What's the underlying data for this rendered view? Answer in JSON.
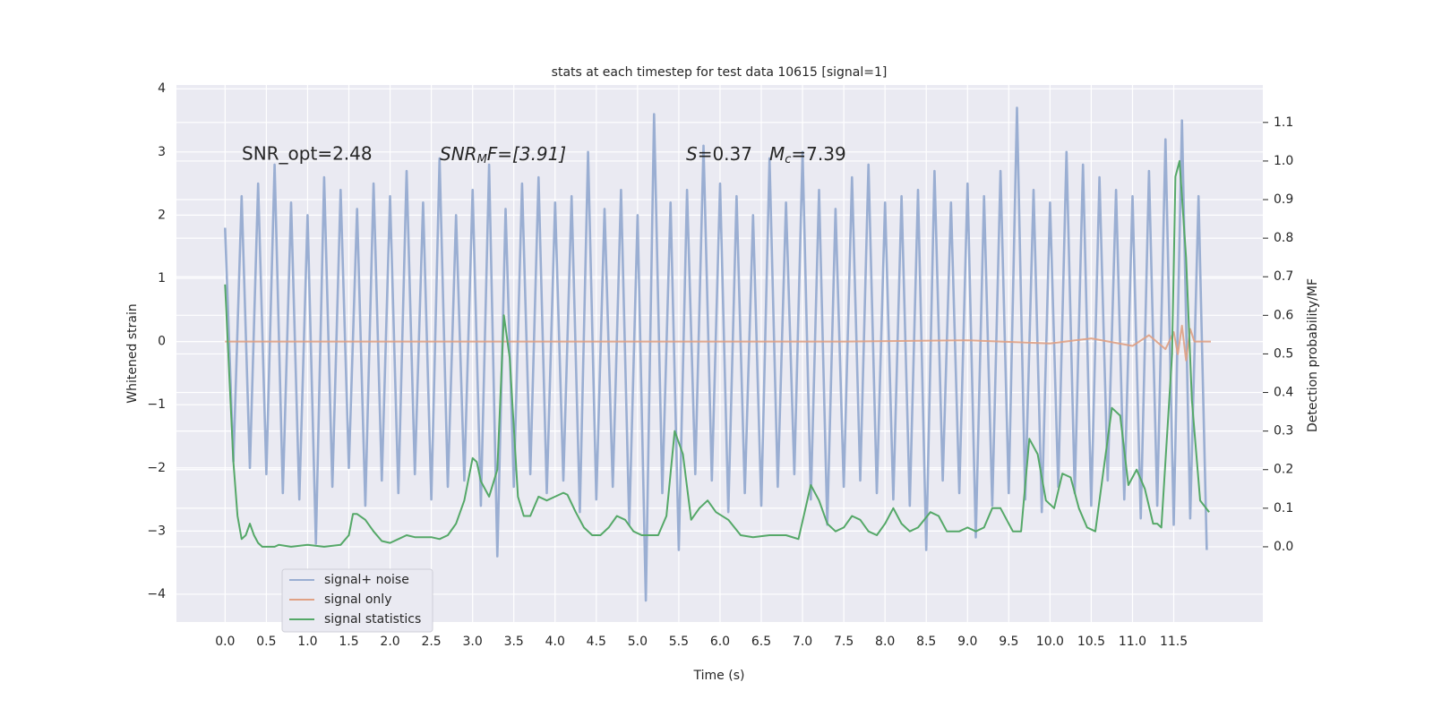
{
  "chart_data": {
    "type": "line",
    "title": "stats at each timestep for test data 10615 [signal=1]",
    "xlabel": "Time (s)",
    "ylabel": "Whitened strain",
    "y2label": "Detection probability/MF",
    "annotations": {
      "snr_opt": "SNR_opt=2.48",
      "snr_mf": {
        "main": "SNR",
        "sub": "M",
        "rest": "F=[3.91]"
      },
      "s": {
        "sym": "S",
        "rest": "=0.37"
      },
      "mc": {
        "sym": "M",
        "sub": "c",
        "rest": "=7.39"
      }
    },
    "xlim": [
      -0.59,
      12.58
    ],
    "ylim": [
      -4.44,
      4.06
    ],
    "y2lim": [
      -0.195,
      1.197
    ],
    "xticks": [
      {
        "value": 0,
        "label": "0.0"
      },
      0.5,
      {
        "value": 1,
        "label": "1.0"
      },
      1.5,
      {
        "value": 2,
        "label": "2.0"
      },
      2.5,
      {
        "value": 3,
        "label": "3.0"
      },
      3.5,
      {
        "value": 4,
        "label": "4.0"
      },
      4.5,
      {
        "value": 5,
        "label": "5.0"
      },
      5.5,
      {
        "value": 6,
        "label": "6.0"
      },
      6.5,
      {
        "value": 7,
        "label": "7.0"
      },
      7.5,
      {
        "value": 8,
        "label": "8.0"
      },
      8.5,
      {
        "value": 9,
        "label": "9.0"
      },
      9.5,
      {
        "value": 10,
        "label": "10.0"
      },
      10.5,
      {
        "value": 11,
        "label": "11.0"
      },
      11.5
    ],
    "yticks": [
      {
        "value": -4,
        "label": "−4"
      },
      {
        "value": -3,
        "label": "−3"
      },
      {
        "value": -2,
        "label": "−2"
      },
      {
        "value": -1,
        "label": "−1"
      },
      0,
      1,
      2,
      3,
      4
    ],
    "y2ticks": [
      {
        "value": 0,
        "label": "0.0"
      },
      0.1,
      0.2,
      0.3,
      0.4,
      0.5,
      0.6,
      0.7,
      0.8,
      0.9,
      {
        "value": 1,
        "label": "1.0"
      },
      1.1
    ],
    "grid": true,
    "legend": "lower left",
    "series": [
      {
        "name": "signal+ noise",
        "color": "#9aaed2",
        "x": [
          0.0,
          0.1,
          0.2,
          0.3,
          0.4,
          0.5,
          0.6,
          0.7,
          0.8,
          0.9,
          1.0,
          1.1,
          1.2,
          1.3,
          1.4,
          1.5,
          1.6,
          1.7,
          1.8,
          1.9,
          2.0,
          2.1,
          2.2,
          2.3,
          2.4,
          2.5,
          2.6,
          2.7,
          2.8,
          2.9,
          3.0,
          3.1,
          3.2,
          3.3,
          3.4,
          3.5,
          3.6,
          3.7,
          3.8,
          3.9,
          4.0,
          4.1,
          4.2,
          4.3,
          4.4,
          4.5,
          4.6,
          4.7,
          4.8,
          4.9,
          5.0,
          5.1,
          5.2,
          5.3,
          5.4,
          5.5,
          5.6,
          5.7,
          5.8,
          5.9,
          6.0,
          6.1,
          6.2,
          6.3,
          6.4,
          6.5,
          6.6,
          6.7,
          6.8,
          6.9,
          7.0,
          7.1,
          7.2,
          7.3,
          7.4,
          7.5,
          7.6,
          7.7,
          7.8,
          7.9,
          8.0,
          8.1,
          8.2,
          8.3,
          8.4,
          8.5,
          8.6,
          8.7,
          8.8,
          8.9,
          9.0,
          9.1,
          9.2,
          9.3,
          9.4,
          9.5,
          9.6,
          9.7,
          9.8,
          9.9,
          10.0,
          10.1,
          10.2,
          10.3,
          10.4,
          10.5,
          10.6,
          10.7,
          10.8,
          10.9,
          11.0,
          11.1,
          11.2,
          11.3,
          11.4,
          11.5,
          11.6,
          11.7,
          11.8,
          11.9
        ],
        "values": [
          1.8,
          -1.9,
          2.3,
          -2.0,
          2.5,
          -2.1,
          2.8,
          -2.4,
          2.2,
          -2.5,
          2.0,
          -3.2,
          2.6,
          -2.3,
          2.4,
          -2.0,
          2.1,
          -2.6,
          2.5,
          -2.2,
          2.3,
          -2.4,
          2.7,
          -2.1,
          2.2,
          -2.5,
          2.9,
          -2.3,
          2.0,
          -2.2,
          2.4,
          -2.6,
          2.8,
          -3.4,
          2.1,
          -2.3,
          2.5,
          -2.1,
          2.6,
          -2.4,
          2.2,
          -2.2,
          2.3,
          -2.7,
          3.0,
          -2.5,
          2.1,
          -2.3,
          2.4,
          -2.9,
          2.0,
          -4.1,
          3.6,
          -2.4,
          2.2,
          -3.3,
          2.4,
          -2.1,
          3.1,
          -2.2,
          2.5,
          -2.7,
          2.3,
          -2.4,
          2.0,
          -2.6,
          2.9,
          -2.3,
          2.2,
          -2.1,
          3.0,
          -2.5,
          2.4,
          -2.9,
          2.1,
          -2.3,
          2.6,
          -2.2,
          2.8,
          -2.4,
          2.2,
          -2.5,
          2.3,
          -2.6,
          2.4,
          -3.3,
          2.7,
          -2.2,
          2.2,
          -2.4,
          2.5,
          -3.1,
          2.3,
          -2.6,
          2.7,
          -2.4,
          3.7,
          -2.5,
          2.4,
          -2.7,
          2.2,
          -2.3,
          3.0,
          -2.4,
          2.8,
          -2.6,
          2.6,
          -2.2,
          2.4,
          -2.5,
          2.3,
          -2.8,
          2.7,
          -2.6,
          3.2,
          -2.9,
          3.5,
          -2.8,
          2.3,
          -3.3
        ]
      },
      {
        "name": "signal only",
        "color": "#e0a184",
        "x": [
          0,
          7.5,
          9.0,
          10.0,
          10.5,
          11.0,
          11.2,
          11.4,
          11.5,
          11.55,
          11.6,
          11.65,
          11.7,
          11.75,
          11.95
        ],
        "values": [
          0,
          0,
          0.02,
          -0.03,
          0.05,
          -0.07,
          0.1,
          -0.12,
          0.15,
          -0.2,
          0.25,
          -0.3,
          0.2,
          0,
          0
        ]
      },
      {
        "name": "signal statistics",
        "color": "#55a868",
        "axis": "y2",
        "x": [
          0.0,
          0.05,
          0.1,
          0.15,
          0.2,
          0.25,
          0.3,
          0.35,
          0.4,
          0.45,
          0.6,
          0.65,
          0.8,
          1.0,
          1.2,
          1.4,
          1.5,
          1.55,
          1.6,
          1.7,
          1.8,
          1.9,
          2.0,
          2.1,
          2.2,
          2.3,
          2.5,
          2.6,
          2.7,
          2.8,
          2.9,
          3.0,
          3.05,
          3.1,
          3.2,
          3.3,
          3.38,
          3.45,
          3.55,
          3.62,
          3.7,
          3.8,
          3.9,
          4.0,
          4.1,
          4.15,
          4.25,
          4.35,
          4.45,
          4.55,
          4.65,
          4.75,
          4.85,
          4.95,
          5.05,
          5.15,
          5.25,
          5.35,
          5.45,
          5.55,
          5.65,
          5.75,
          5.85,
          5.95,
          6.1,
          6.25,
          6.4,
          6.6,
          6.8,
          6.95,
          7.1,
          7.2,
          7.3,
          7.4,
          7.5,
          7.6,
          7.7,
          7.8,
          7.9,
          8.0,
          8.1,
          8.2,
          8.3,
          8.4,
          8.55,
          8.65,
          8.75,
          8.9,
          9.0,
          9.1,
          9.2,
          9.3,
          9.4,
          9.55,
          9.65,
          9.75,
          9.85,
          9.95,
          10.05,
          10.15,
          10.25,
          10.35,
          10.45,
          10.55,
          10.65,
          10.75,
          10.85,
          10.95,
          11.05,
          11.15,
          11.25,
          11.3,
          11.35,
          11.48,
          11.52,
          11.57,
          11.65,
          11.72,
          11.82,
          11.93
        ],
        "values": [
          0.68,
          0.45,
          0.22,
          0.08,
          0.02,
          0.03,
          0.06,
          0.03,
          0.01,
          0.0,
          0.0,
          0.005,
          0.0,
          0.005,
          0.0,
          0.005,
          0.03,
          0.085,
          0.085,
          0.07,
          0.04,
          0.015,
          0.01,
          0.02,
          0.03,
          0.025,
          0.025,
          0.02,
          0.03,
          0.06,
          0.12,
          0.23,
          0.22,
          0.17,
          0.13,
          0.2,
          0.6,
          0.49,
          0.13,
          0.08,
          0.08,
          0.13,
          0.12,
          0.13,
          0.14,
          0.135,
          0.09,
          0.05,
          0.03,
          0.03,
          0.05,
          0.08,
          0.07,
          0.04,
          0.03,
          0.03,
          0.03,
          0.08,
          0.3,
          0.24,
          0.07,
          0.1,
          0.12,
          0.09,
          0.07,
          0.03,
          0.025,
          0.03,
          0.03,
          0.02,
          0.16,
          0.12,
          0.06,
          0.04,
          0.05,
          0.08,
          0.07,
          0.04,
          0.03,
          0.06,
          0.1,
          0.06,
          0.04,
          0.05,
          0.09,
          0.08,
          0.04,
          0.04,
          0.05,
          0.04,
          0.05,
          0.1,
          0.1,
          0.04,
          0.04,
          0.28,
          0.24,
          0.12,
          0.1,
          0.19,
          0.18,
          0.1,
          0.05,
          0.04,
          0.2,
          0.36,
          0.34,
          0.16,
          0.2,
          0.15,
          0.06,
          0.06,
          0.05,
          0.5,
          0.96,
          1.0,
          0.75,
          0.38,
          0.12,
          0.09
        ]
      }
    ]
  }
}
